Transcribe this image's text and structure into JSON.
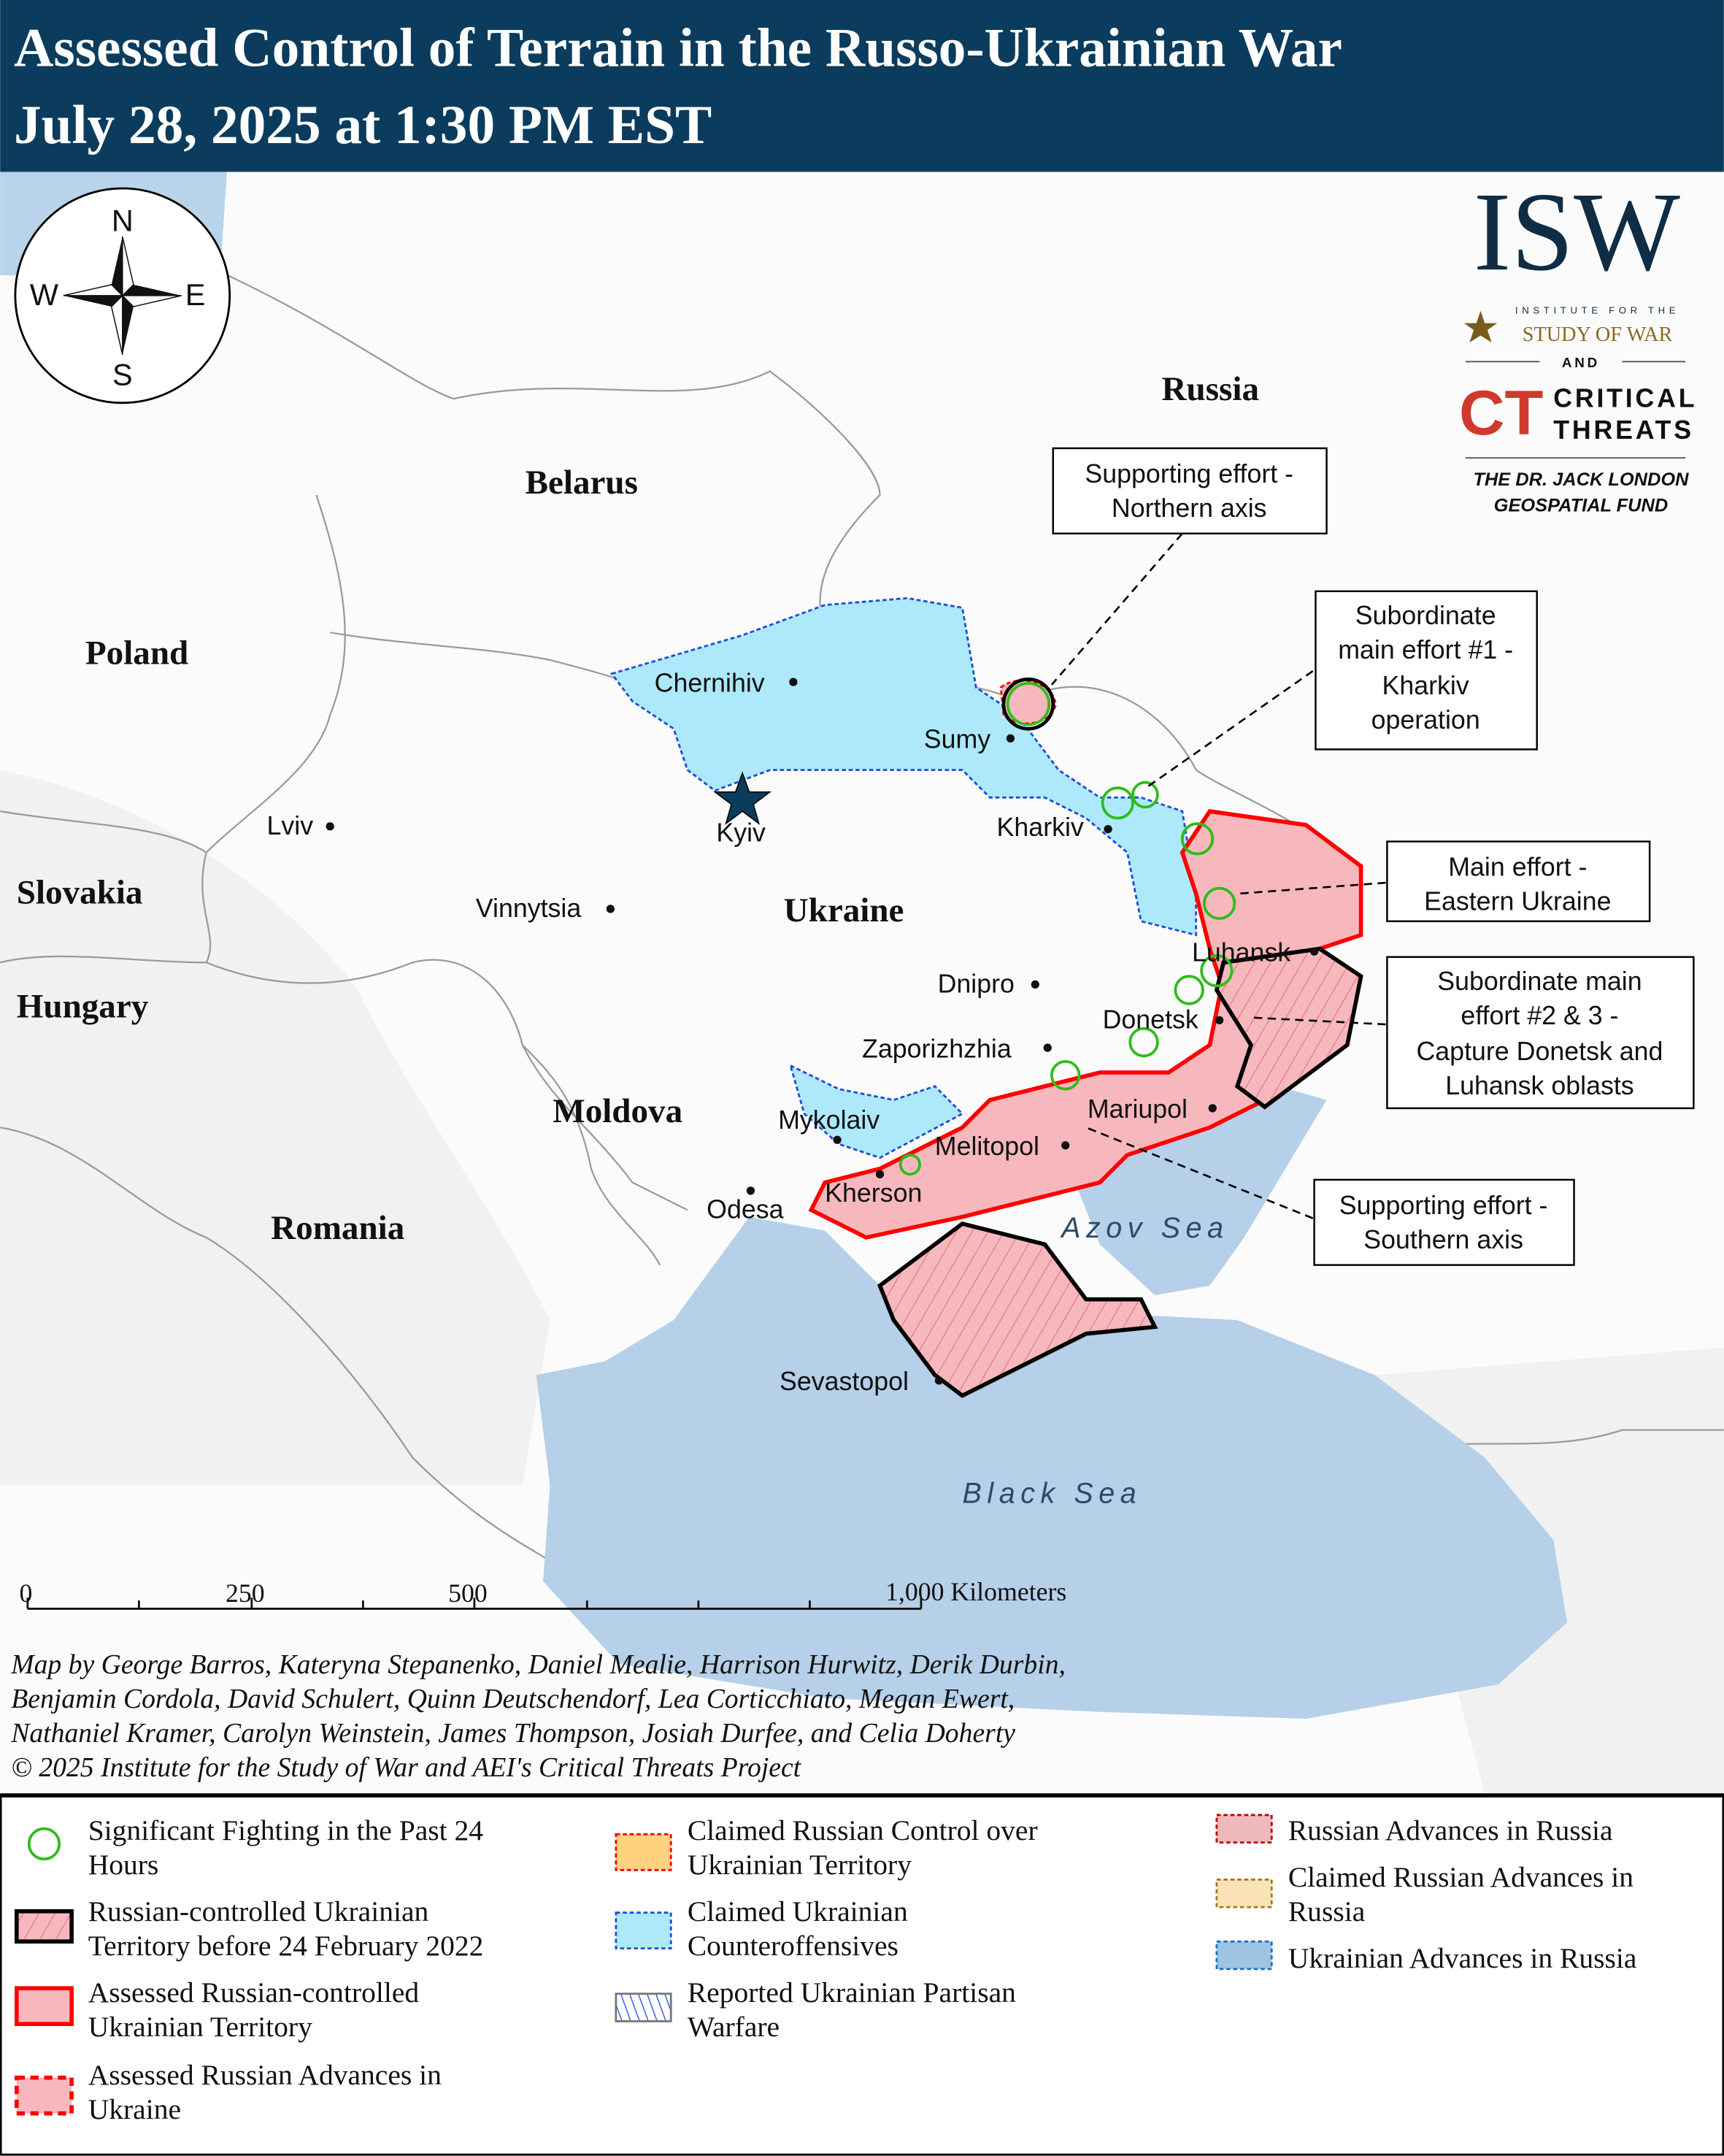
{
  "header": {
    "title_line1": "Assessed Control of Terrain in the Russo-Ukrainian War",
    "title_line2": "July 28, 2025 at 1:30 PM EST",
    "background": "#0b3c5d"
  },
  "compass": {
    "n": "N",
    "s": "S",
    "e": "E",
    "w": "W"
  },
  "logo": {
    "isw": "ISW",
    "isw_sub1": "INSTITUTE FOR THE",
    "isw_sub2": "STUDY OF WAR",
    "and": "AND",
    "ct": "CT",
    "ct_line1": "CRITICAL",
    "ct_line2": "THREATS",
    "fund_line1": "THE DR. JACK LONDON",
    "fund_line2": "GEOSPATIAL FUND"
  },
  "countries": {
    "russia": "Russia",
    "belarus": "Belarus",
    "poland": "Poland",
    "slovakia": "Slovakia",
    "hungary": "Hungary",
    "moldova": "Moldova",
    "romania": "Romania",
    "ukraine": "Ukraine"
  },
  "seas": {
    "azov": "Azov Sea",
    "black": "Black Sea"
  },
  "cities": {
    "chernihiv": "Chernihiv",
    "sumy": "Sumy",
    "kyiv": "Kyiv",
    "kharkiv": "Kharkiv",
    "lviv": "Lviv",
    "vinnytsia": "Vinnytsia",
    "dnipro": "Dnipro",
    "luhansk": "Luhansk",
    "donetsk": "Donetsk",
    "zaporizhzhia": "Zaporizhzhia",
    "mariupol": "Mariupol",
    "mykolaiv": "Mykolaiv",
    "melitopol": "Melitopol",
    "kherson": "Kherson",
    "odesa": "Odesa",
    "sevastopol": "Sevastopol"
  },
  "callouts": [
    {
      "lines": [
        "Supporting effort -",
        "Northern axis"
      ]
    },
    {
      "lines": [
        "Subordinate",
        "main effort #1 -",
        "Kharkiv",
        "operation"
      ]
    },
    {
      "lines": [
        "Main effort -",
        "Eastern Ukraine"
      ]
    },
    {
      "lines": [
        "Subordinate main",
        "effort #2 & 3 -",
        "Capture Donetsk and",
        "Luhansk oblasts"
      ]
    },
    {
      "lines": [
        "Supporting effort -",
        "Southern axis"
      ]
    }
  ],
  "scale": {
    "ticks": [
      "0",
      "250",
      "500",
      "1,000 Kilometers"
    ]
  },
  "credits": [
    "Map by George Barros, Kateryna Stepanenko, Daniel Mealie, Harrison Hurwitz, Derik Durbin,",
    "Benjamin Cordola, David Schulert, Quinn Deutschendorf, Lea Corticchiato, Megan Ewert,",
    "Nathaniel Kramer, Carolyn Weinstein, James Thompson, Josiah Durfee, and Celia Doherty",
    "© 2025 Institute for the Study of War and AEI's Critical Threats Project"
  ],
  "legend": [
    {
      "lines": [
        "Significant Fighting in the Past 24",
        "Hours"
      ],
      "icon": "green-circle",
      "color": "#2ebd1a"
    },
    {
      "lines": [
        "Russian-controlled Ukrainian",
        "Territory before 24 February 2022"
      ],
      "icon": "black-hatched",
      "color": "#000000"
    },
    {
      "lines": [
        "Assessed Russian-controlled",
        "Ukrainian Territory"
      ],
      "icon": "red-solid",
      "color": "#ff0000"
    },
    {
      "lines": [
        "Assessed Russian Advances in",
        "Ukraine"
      ],
      "icon": "red-dashed",
      "color": "#ff0000"
    },
    {
      "lines": [
        "Claimed Russian Control over",
        "Ukrainian Territory"
      ],
      "icon": "orange-dashed",
      "color": "#ffd27f"
    },
    {
      "lines": [
        "Claimed Ukrainian",
        "Counteroffensives"
      ],
      "icon": "blue-dashed",
      "color": "#aee9fb"
    },
    {
      "lines": [
        "Reported Ukrainian Partisan",
        "Warfare"
      ],
      "icon": "blue-hatched",
      "color": "#1a4fd8"
    },
    {
      "lines": [
        "Russian Advances in Russia"
      ],
      "icon": "darkred-dashed",
      "color": "#c00000"
    },
    {
      "lines": [
        "Claimed Russian Advances in",
        "Russia"
      ],
      "icon": "tan-dashed",
      "color": "#a8781a"
    },
    {
      "lines": [
        "Ukrainian Advances in Russia"
      ],
      "icon": "steelblue-dashed",
      "color": "#1f6fc5"
    }
  ]
}
